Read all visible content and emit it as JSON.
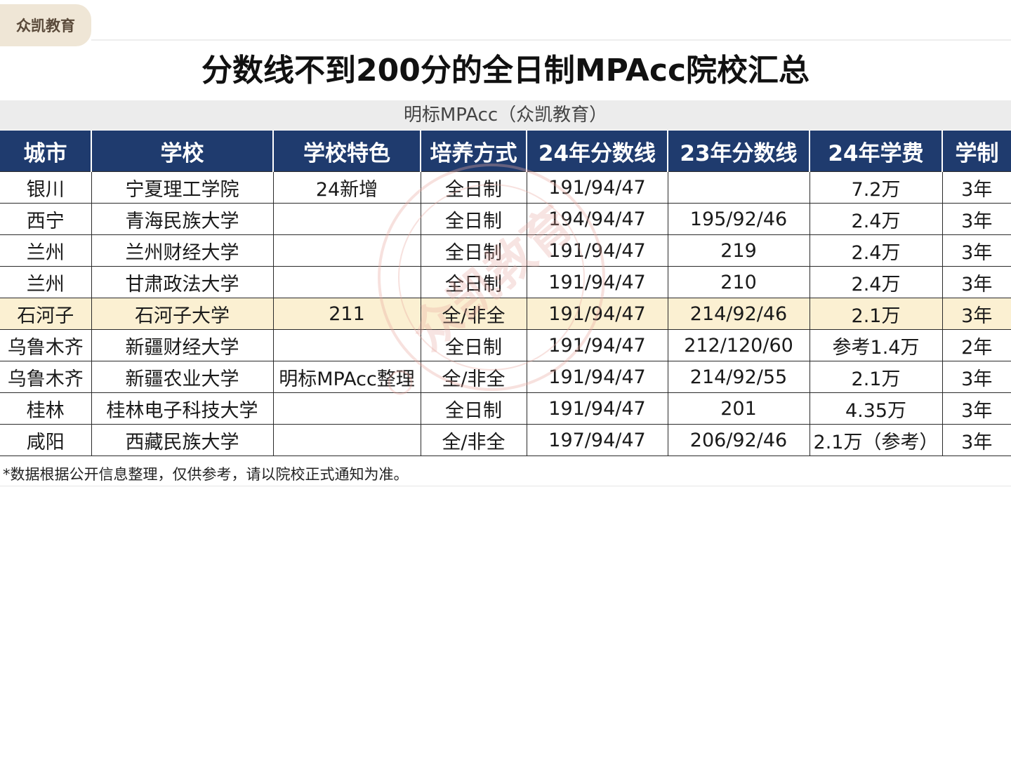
{
  "brand": {
    "tag": "众凯教育"
  },
  "header": {
    "title": "分数线不到200分的全日制MPAcc院校汇总",
    "subtitle": "明标MPAcc（众凯教育）"
  },
  "table": {
    "columns": [
      "城市",
      "学校",
      "学校特色",
      "培养方式",
      "24年分数线",
      "23年分数线",
      "24年学费",
      "学制"
    ],
    "rows": [
      [
        "银川",
        "宁夏理工学院",
        "24新增",
        "全日制",
        "191/94/47",
        "",
        "7.2万",
        "3年"
      ],
      [
        "西宁",
        "青海民族大学",
        "",
        "全日制",
        "194/94/47",
        "195/92/46",
        "2.4万",
        "3年"
      ],
      [
        "兰州",
        "兰州财经大学",
        "",
        "全日制",
        "191/94/47",
        "219",
        "2.4万",
        "3年"
      ],
      [
        "兰州",
        "甘肃政法大学",
        "",
        "全日制",
        "191/94/47",
        "210",
        "2.4万",
        "3年"
      ],
      [
        "石河子",
        "石河子大学",
        "211",
        "全/非全",
        "191/94/47",
        "214/92/46",
        "2.1万",
        "3年"
      ],
      [
        "乌鲁木齐",
        "新疆财经大学",
        "",
        "全日制",
        "191/94/47",
        "212/120/60",
        "参考1.4万",
        "2年"
      ],
      [
        "乌鲁木齐",
        "新疆农业大学",
        "明标MPAcc整理",
        "全/非全",
        "191/94/47",
        "214/92/55",
        "2.1万",
        "3年"
      ],
      [
        "桂林",
        "桂林电子科技大学",
        "",
        "全日制",
        "191/94/47",
        "201",
        "4.35万",
        "3年"
      ],
      [
        "咸阳",
        "西藏民族大学",
        "",
        "全/非全",
        "197/94/47",
        "206/92/46",
        "2.1万（参考）",
        "3年"
      ]
    ],
    "highlight_row": 4,
    "colors": {
      "header_bg": "#1f3b6e",
      "highlight_bg": "#fbf0d2"
    }
  },
  "watermark": {
    "text": "众凯教育"
  },
  "footnote": "*数据根据公开信息整理，仅供参考，请以院校正式通知为准。"
}
